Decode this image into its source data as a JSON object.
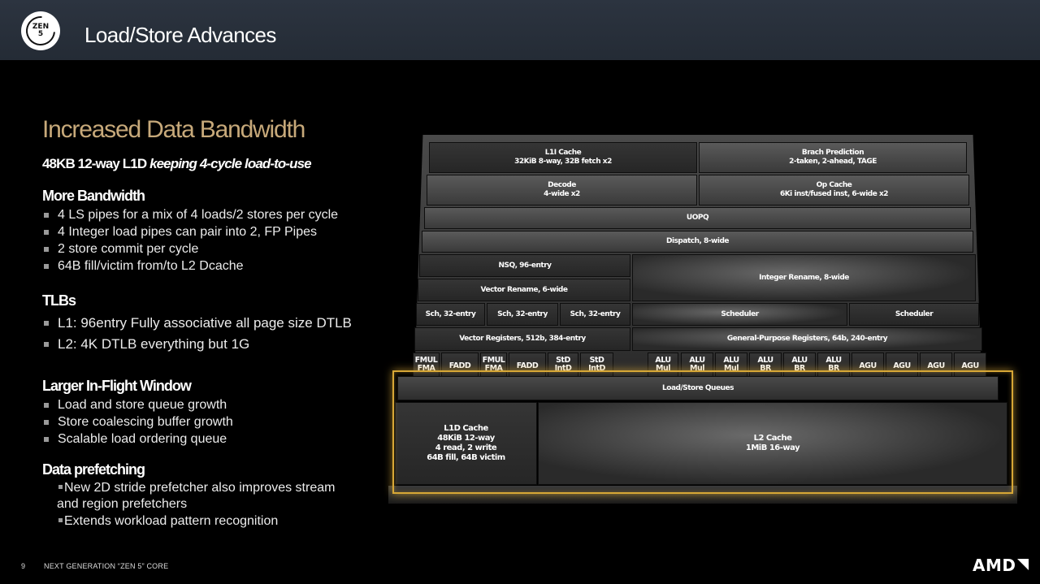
{
  "header": {
    "logo_line1": "ZEN",
    "logo_line2": "5",
    "title": "Load/Store Advances"
  },
  "left": {
    "heading": "Increased Data Bandwidth",
    "subheading_plain": "48KB 12-way L1D ",
    "subheading_italic": "keeping 4-cycle load-to-use",
    "more_bandwidth": {
      "title": "More Bandwidth",
      "items": [
        "4 LS pipes for a mix of 4 loads/2 stores per cycle",
        "4 Integer load pipes can pair into 2, FP Pipes",
        "2 store commit per cycle",
        "64B fill/victim from/to L2 Dcache"
      ]
    },
    "tlbs": {
      "title": "TLBs",
      "items": [
        "L1: 96entry Fully associative all page size DTLB",
        "L2: 4K DTLB everything but 1G"
      ]
    },
    "inflight": {
      "title": "Larger In-Flight Window",
      "items": [
        "Load and store queue growth",
        "Store coalescing buffer growth",
        "Scalable load ordering queue"
      ]
    },
    "prefetch": {
      "title": "Data prefetching",
      "line1": "New 2D stride prefetcher also improves stream",
      "line2": "and region prefetchers",
      "line3": "Extends workload pattern recognition"
    }
  },
  "footer": {
    "page": "9",
    "text": "NEXT GENERATION “ZEN 5” CORE",
    "brand": "AMD"
  },
  "diagram": {
    "l1i": "L1I Cache\n32KiB 8-way, 32B fetch x2",
    "branch": "Brach Prediction\n2-taken, 2-ahead, TAGE",
    "decode": "Decode\n4-wide x2",
    "opcache": "Op Cache\n6Ki inst/fused inst, 6-wide x2",
    "uopq": "UOPQ",
    "dispatch": "Dispatch, 8-wide",
    "nsq": "NSQ, 96-entry",
    "vrename": "Vector Rename, 6-wide",
    "irename": "Integer Rename, 8-wide",
    "sch": "Sch, 32-entry",
    "scheduler": "Scheduler",
    "vregs": "Vector Registers, 512b, 384-entry",
    "gpregs": "General-Purpose Registers, 64b, 240-entry",
    "fmul": "FMUL\nFMA",
    "fadd": "FADD",
    "std": "StD\nIntD",
    "alu_mul": "ALU\nMul",
    "alu_br": "ALU\nBR",
    "agu": "AGU",
    "lsq": "Load/Store Queues",
    "l1d": "L1D Cache\n48KiB 12-way\n4 read, 2 write\n64B fill, 64B victim",
    "l2": "L2 Cache\n1MiB 16-way"
  },
  "colors": {
    "accent_gold": "#c7a97a",
    "highlight": "#d7a736",
    "header_bg": "#2c3440"
  }
}
